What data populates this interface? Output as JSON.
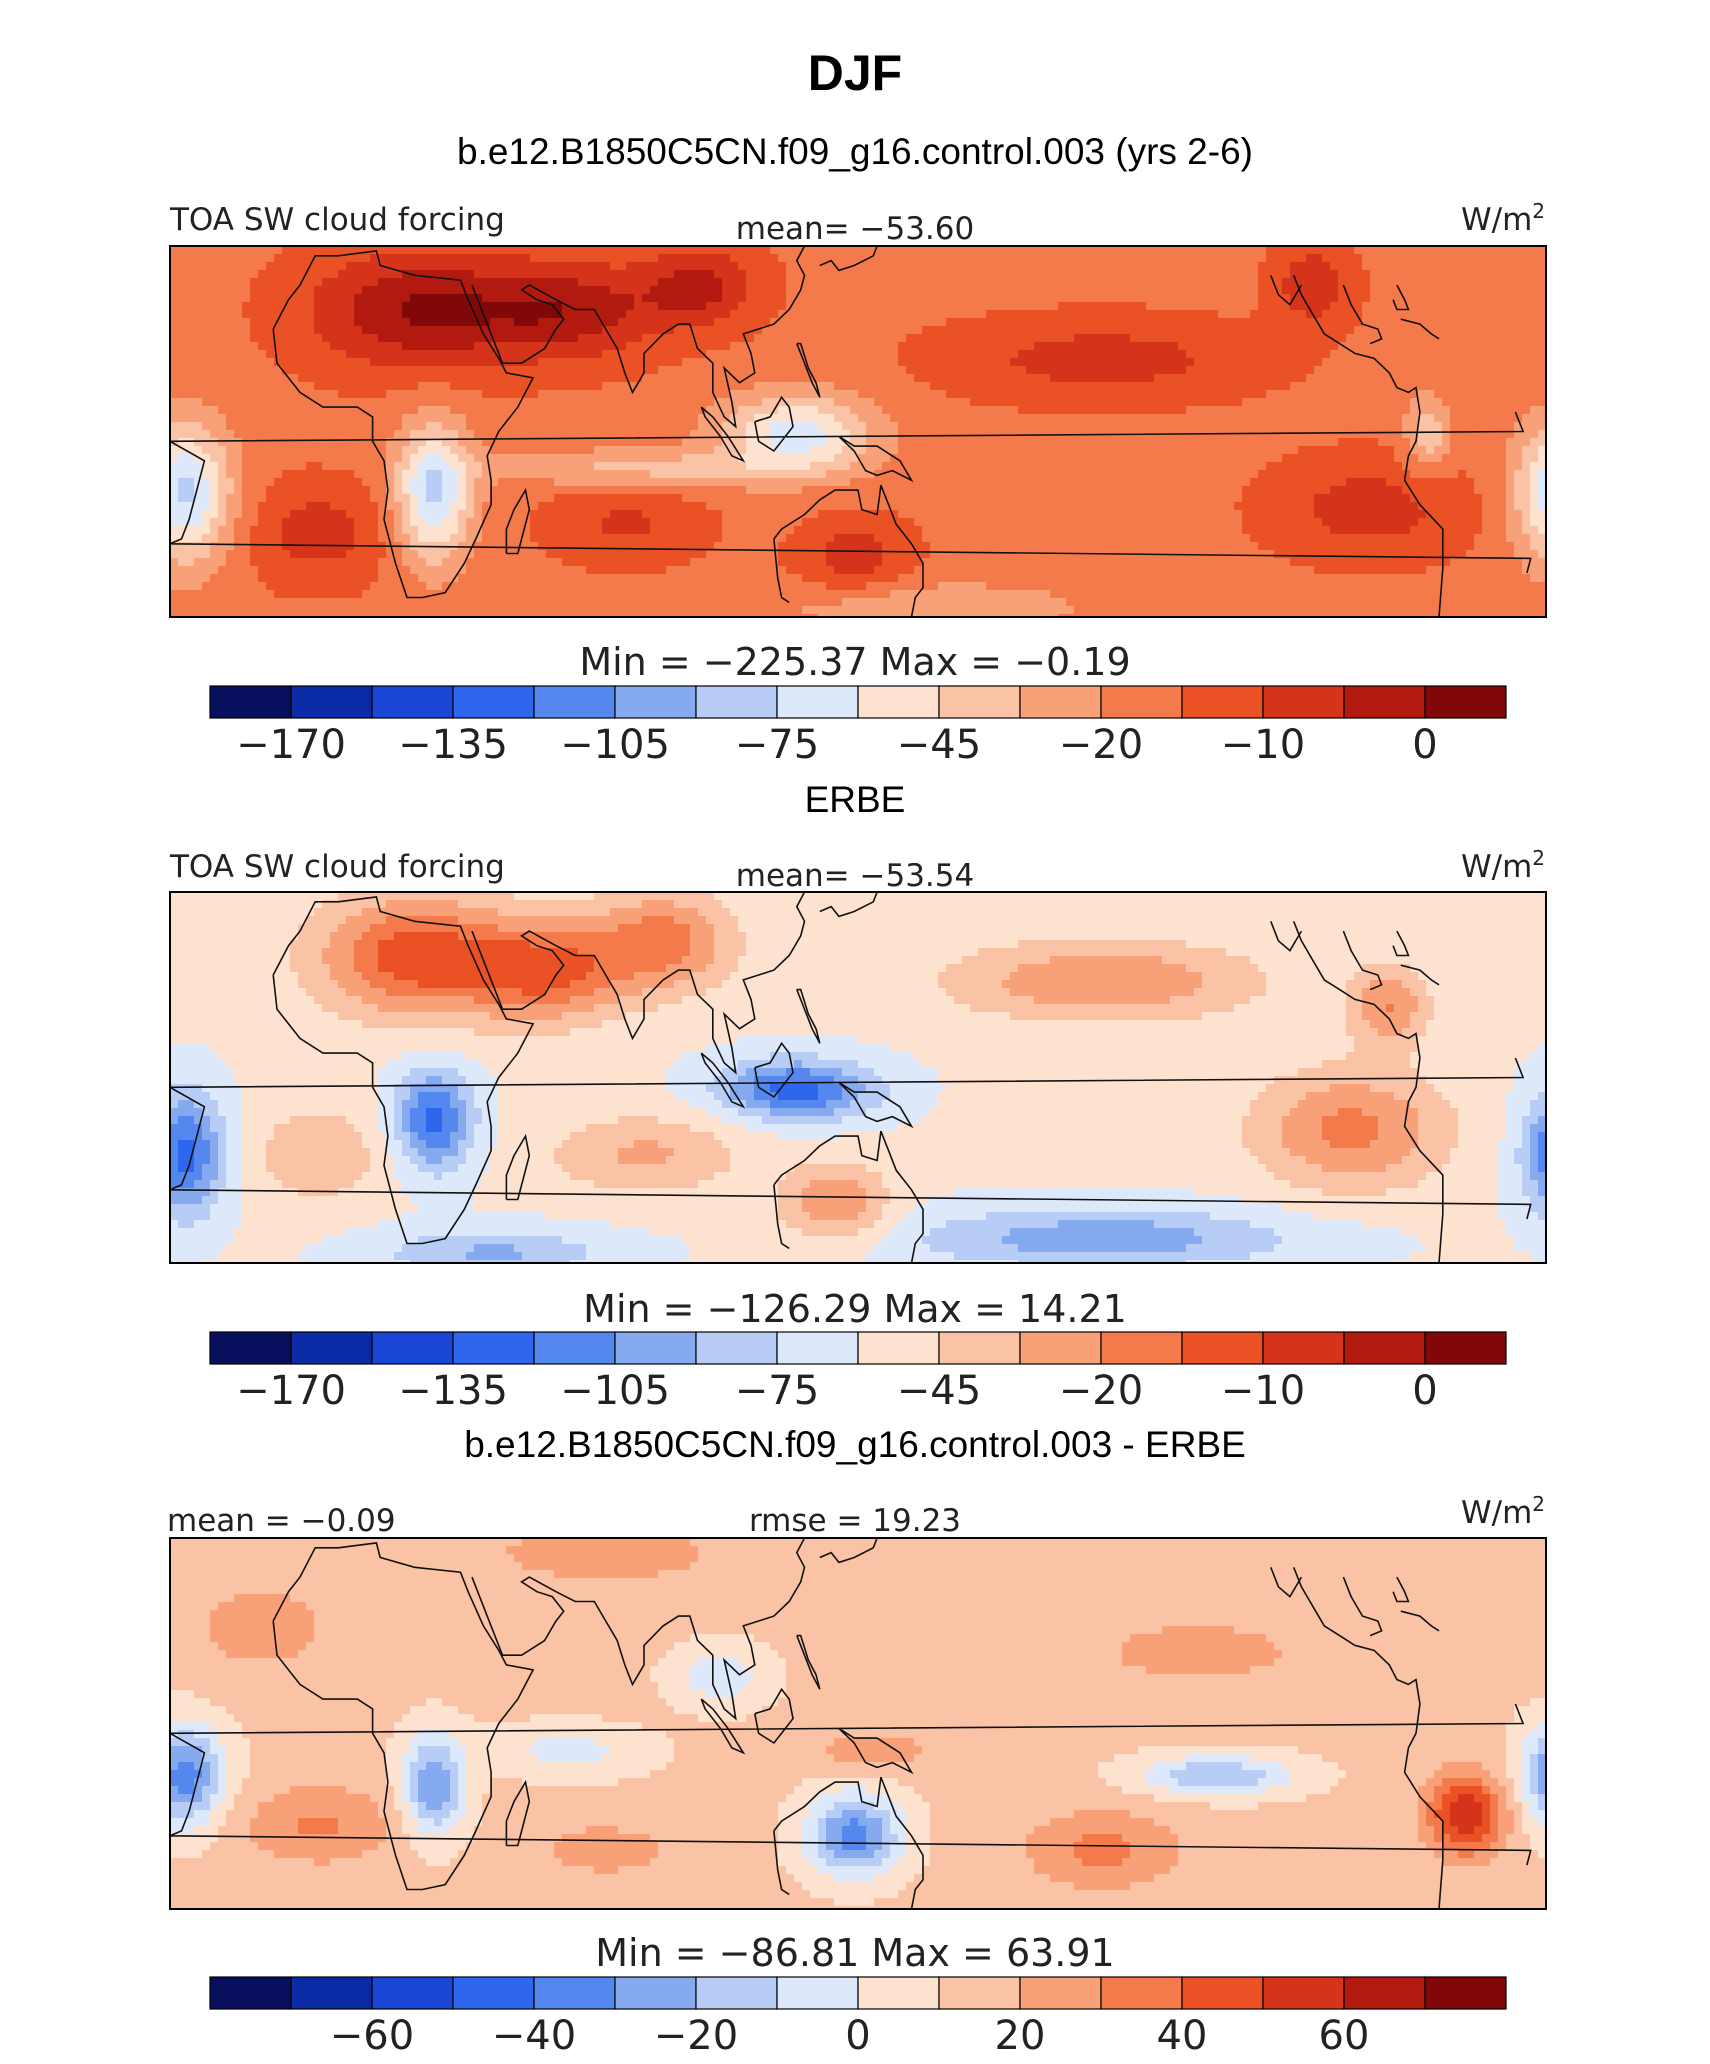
{
  "figure": {
    "title": "DJF"
  },
  "chart_data": [
    {
      "type": "heatmap",
      "title": "b.e12.B1850C5CN.f09_g16.control.003 (yrs 2-6)",
      "left_label": "TOA SW cloud forcing",
      "center_label": "mean= −53.60",
      "unit_base": "W/m",
      "unit_exp": "2",
      "min_max": "Min = −225.37 Max = −0.19",
      "colorbar_ticks": [
        "−170",
        "−135",
        "−105",
        "−75",
        "−45",
        "−20",
        "−10",
        "0"
      ],
      "colorbar_colors": [
        "#08105e",
        "#0b2aa6",
        "#1a46d6",
        "#2f66ee",
        "#5588ee",
        "#86aaf0",
        "#b8cdf5",
        "#dde8fb",
        "#fde2d0",
        "#fbc3a6",
        "#f8a078",
        "#f47a4c",
        "#ea5226",
        "#d6341a",
        "#b21a10",
        "#800808"
      ],
      "color_range": [
        -225.37,
        0
      ],
      "field": "control"
    },
    {
      "type": "heatmap",
      "title": "ERBE",
      "left_label": "TOA SW cloud forcing",
      "center_label": "mean= −53.54",
      "unit_base": "W/m",
      "unit_exp": "2",
      "min_max": "Min = −126.29 Max = 14.21",
      "colorbar_ticks": [
        "−170",
        "−135",
        "−105",
        "−75",
        "−45",
        "−20",
        "−10",
        "0"
      ],
      "colorbar_colors": [
        "#08105e",
        "#0b2aa6",
        "#1a46d6",
        "#2f66ee",
        "#5588ee",
        "#86aaf0",
        "#b8cdf5",
        "#dde8fb",
        "#fde2d0",
        "#fbc3a6",
        "#f8a078",
        "#f47a4c",
        "#ea5226",
        "#d6341a",
        "#b21a10",
        "#800808"
      ],
      "color_range": [
        -126.29,
        14.21
      ],
      "field": "erbe"
    },
    {
      "type": "heatmap",
      "title": "b.e12.B1850C5CN.f09_g16.control.003 - ERBE",
      "left_label": "mean = −0.09",
      "center_label": "rmse = 19.23",
      "unit_base": "W/m",
      "unit_exp": "2",
      "min_max": "Min = −86.81 Max = 63.91",
      "colorbar_ticks": [
        "−60",
        "−40",
        "−20",
        "0",
        "20",
        "40",
        "60"
      ],
      "colorbar_colors": [
        "#08105e",
        "#0b2aa6",
        "#1a46d6",
        "#2f66ee",
        "#5588ee",
        "#86aaf0",
        "#b8cdf5",
        "#dde8fb",
        "#fde2d0",
        "#fbc3a6",
        "#f8a078",
        "#f47a4c",
        "#ea5226",
        "#d6341a",
        "#b21a10",
        "#800808"
      ],
      "color_range": [
        -86.81,
        63.91
      ],
      "field": "diff"
    }
  ]
}
